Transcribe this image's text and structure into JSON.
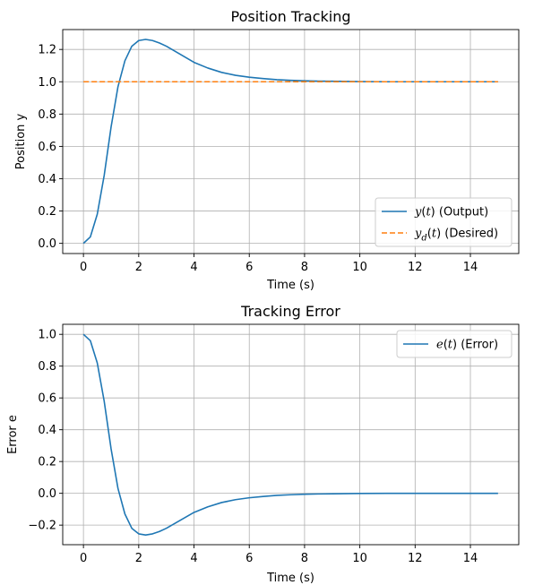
{
  "chart_data": [
    {
      "type": "line",
      "title": "Position Tracking",
      "xlabel": "Time (s)",
      "ylabel": "Position y",
      "xlim": [
        -0.75,
        15.75
      ],
      "ylim": [
        -0.063,
        1.323
      ],
      "xticks": [
        0,
        2,
        4,
        6,
        8,
        10,
        12,
        14
      ],
      "yticks": [
        0.0,
        0.2,
        0.4,
        0.6,
        0.8,
        1.0,
        1.2
      ],
      "ytick_labels": [
        "0.0",
        "0.2",
        "0.4",
        "0.6",
        "0.8",
        "1.0",
        "1.2"
      ],
      "grid": true,
      "legend_position": "lower-right",
      "series": [
        {
          "name": "y(t) (Output)",
          "legend_parts": [
            {
              "text": "y",
              "italic": true
            },
            {
              "text": "(",
              "italic": false
            },
            {
              "text": "t",
              "italic": true
            },
            {
              "text": ") (Output)",
              "italic": false
            }
          ],
          "color": "#1f77b4",
          "style": "solid",
          "x": [
            0,
            0.25,
            0.5,
            0.75,
            1.0,
            1.25,
            1.5,
            1.75,
            2.0,
            2.25,
            2.5,
            2.75,
            3.0,
            3.5,
            4.0,
            4.5,
            5.0,
            5.5,
            6.0,
            6.5,
            7.0,
            7.5,
            8.0,
            8.5,
            9.0,
            10.0,
            11.0,
            12.0,
            13.0,
            14.0,
            15.0
          ],
          "y": [
            0.0,
            0.04,
            0.18,
            0.42,
            0.72,
            0.97,
            1.13,
            1.22,
            1.255,
            1.262,
            1.255,
            1.24,
            1.22,
            1.17,
            1.12,
            1.085,
            1.058,
            1.04,
            1.028,
            1.02,
            1.013,
            1.009,
            1.006,
            1.004,
            1.003,
            1.001,
            1.0,
            1.0,
            1.0,
            1.0,
            1.0
          ]
        },
        {
          "name": "y_d(t) (Desired)",
          "legend_parts": [
            {
              "text": "y",
              "italic": true
            },
            {
              "text": "d",
              "italic": true,
              "sub": true
            },
            {
              "text": "(",
              "italic": false
            },
            {
              "text": "t",
              "italic": true
            },
            {
              "text": ") (Desired)",
              "italic": false
            }
          ],
          "color": "#ff7f0e",
          "style": "dashed",
          "x": [
            0,
            15
          ],
          "y": [
            1.0,
            1.0
          ]
        }
      ]
    },
    {
      "type": "line",
      "title": "Tracking Error",
      "xlabel": "Time (s)",
      "ylabel": "Error e",
      "xlim": [
        -0.75,
        15.75
      ],
      "ylim": [
        -0.3231,
        1.0631
      ],
      "xticks": [
        0,
        2,
        4,
        6,
        8,
        10,
        12,
        14
      ],
      "yticks": [
        -0.2,
        0.0,
        0.2,
        0.4,
        0.6,
        0.8,
        1.0
      ],
      "ytick_labels": [
        "−0.2",
        "0.0",
        "0.2",
        "0.4",
        "0.6",
        "0.8",
        "1.0"
      ],
      "grid": true,
      "legend_position": "upper-right",
      "series": [
        {
          "name": "e(t) (Error)",
          "legend_parts": [
            {
              "text": "e",
              "italic": true
            },
            {
              "text": "(",
              "italic": false
            },
            {
              "text": "t",
              "italic": true
            },
            {
              "text": ") (Error)",
              "italic": false
            }
          ],
          "color": "#1f77b4",
          "style": "solid",
          "x": [
            0,
            0.25,
            0.5,
            0.75,
            1.0,
            1.25,
            1.5,
            1.75,
            2.0,
            2.25,
            2.5,
            2.75,
            3.0,
            3.5,
            4.0,
            4.5,
            5.0,
            5.5,
            6.0,
            6.5,
            7.0,
            7.5,
            8.0,
            8.5,
            9.0,
            10.0,
            11.0,
            12.0,
            13.0,
            14.0,
            15.0
          ],
          "y": [
            1.0,
            0.96,
            0.82,
            0.58,
            0.28,
            0.03,
            -0.13,
            -0.22,
            -0.255,
            -0.262,
            -0.255,
            -0.24,
            -0.22,
            -0.17,
            -0.12,
            -0.085,
            -0.058,
            -0.04,
            -0.028,
            -0.02,
            -0.013,
            -0.009,
            -0.006,
            -0.004,
            -0.003,
            -0.001,
            0.0,
            0.0,
            0.0,
            0.0,
            0.0
          ]
        }
      ]
    }
  ]
}
